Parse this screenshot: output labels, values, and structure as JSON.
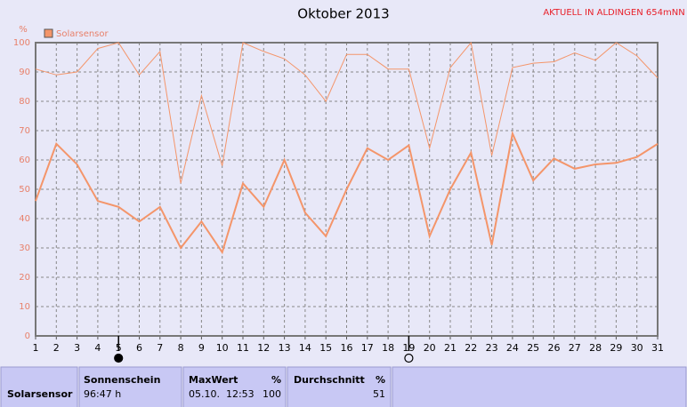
{
  "chart_data": {
    "type": "line",
    "title": "Oktober 2013",
    "corner_text": "AKTUELL IN ALDINGEN 654mNN",
    "y_label": "%",
    "x": [
      1,
      2,
      3,
      4,
      5,
      6,
      7,
      8,
      9,
      10,
      11,
      12,
      13,
      14,
      15,
      16,
      17,
      18,
      19,
      20,
      21,
      22,
      23,
      24,
      25,
      26,
      27,
      28,
      29,
      30,
      31
    ],
    "xlim": [
      1,
      31
    ],
    "xticks": [
      1,
      2,
      3,
      4,
      5,
      6,
      7,
      8,
      9,
      10,
      11,
      12,
      13,
      14,
      15,
      16,
      17,
      18,
      19,
      20,
      21,
      22,
      23,
      24,
      25,
      26,
      27,
      28,
      29,
      30,
      31
    ],
    "ylim": [
      0,
      100
    ],
    "yticks": [
      0,
      10,
      20,
      30,
      40,
      50,
      60,
      70,
      80,
      90,
      100
    ],
    "grid": true,
    "series": [
      {
        "name": "Solarsensor",
        "color": "#f4956a",
        "width": 2,
        "values": [
          46,
          65.5,
          58.5,
          46,
          44,
          39,
          44,
          30,
          39,
          28.5,
          52,
          44,
          60,
          42,
          34,
          50,
          64,
          60,
          65,
          34,
          50,
          62.5,
          31,
          69,
          53,
          60.5,
          57,
          58.5,
          59,
          61,
          65.5
        ]
      },
      {
        "color": "#f4956a",
        "width": 1,
        "values": [
          91,
          89,
          90,
          98,
          100,
          89,
          97,
          52,
          82,
          58,
          100,
          97,
          94.5,
          89,
          80,
          96,
          96,
          91,
          91,
          64,
          91.5,
          100,
          61.5,
          91.5,
          93,
          93.5,
          96.5,
          94,
          100,
          95.5,
          88
        ]
      }
    ],
    "moon_markers": [
      {
        "x": 5,
        "filled": true
      },
      {
        "x": 19,
        "filled": false
      }
    ]
  },
  "table": {
    "headers": [
      "Sonnenschein",
      "MaxWert",
      "%",
      "Durchschnitt",
      "%"
    ],
    "rows": [
      [
        "Solarsensor",
        "96:47 h",
        "05.10.  12:53",
        "100",
        "51"
      ]
    ]
  }
}
